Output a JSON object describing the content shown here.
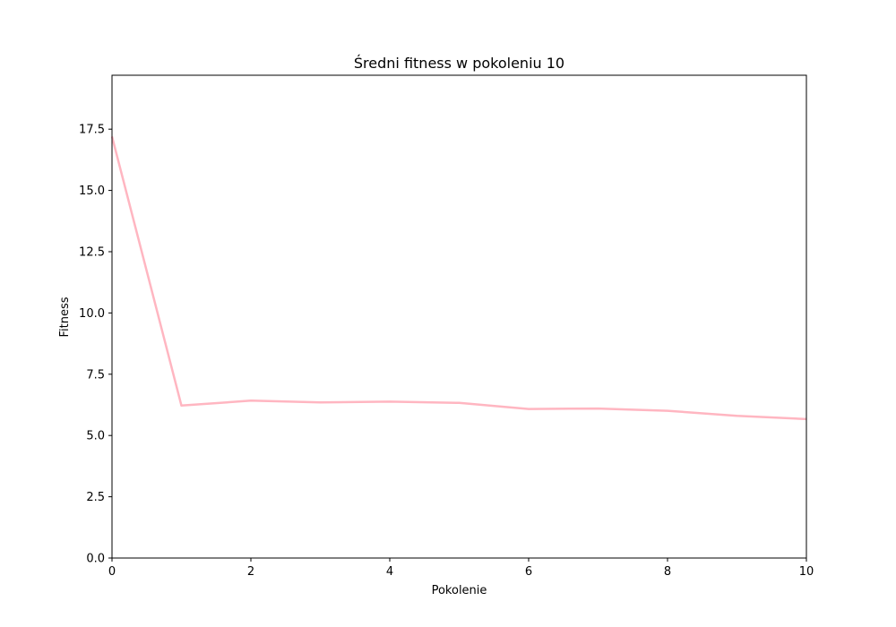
{
  "chart_data": {
    "type": "line",
    "title": "Średni fitness w pokoleniu 10",
    "xlabel": "Pokolenie",
    "ylabel": "Fitness",
    "xlim": [
      0,
      10
    ],
    "ylim": [
      0,
      19.7
    ],
    "x_ticks": [
      0,
      2,
      4,
      6,
      8,
      10
    ],
    "x_tick_labels": [
      "0",
      "2",
      "4",
      "6",
      "8",
      "10"
    ],
    "y_ticks": [
      0,
      2.5,
      5,
      7.5,
      10,
      12.5,
      15,
      17.5
    ],
    "y_tick_labels": [
      "0.0",
      "2.5",
      "5.0",
      "7.5",
      "10.0",
      "12.5",
      "15.0",
      "17.5"
    ],
    "grid": false,
    "series": [
      {
        "name": "Średni fitness",
        "color": "#ffb6c1",
        "x": [
          0,
          1,
          2,
          3,
          4,
          5,
          6,
          7,
          8,
          9,
          10
        ],
        "values": [
          17.2,
          6.22,
          6.42,
          6.35,
          6.38,
          6.33,
          6.08,
          6.1,
          6.01,
          5.8,
          5.67
        ]
      }
    ]
  }
}
